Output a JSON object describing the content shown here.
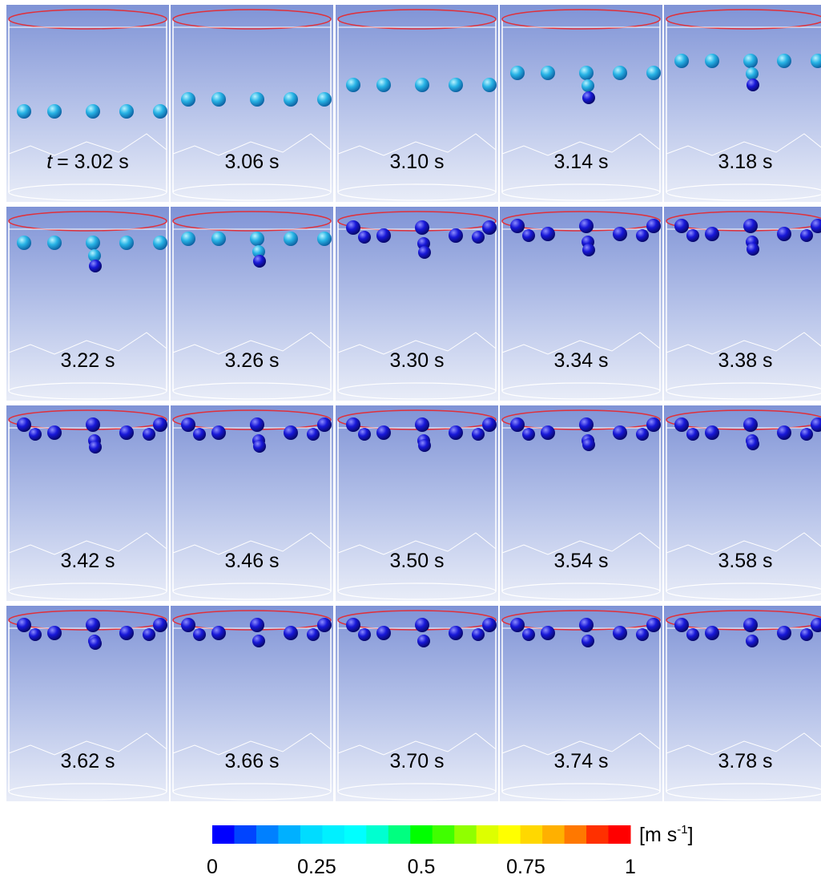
{
  "panels": [
    {
      "label_var": "t",
      "label": "= 3.02 s"
    },
    {
      "label": "3.06 s"
    },
    {
      "label": "3.10 s"
    },
    {
      "label": "3.14 s"
    },
    {
      "label": "3.18 s"
    },
    {
      "label": "3.22 s"
    },
    {
      "label": "3.26 s"
    },
    {
      "label": "3.30 s"
    },
    {
      "label": "3.34 s"
    },
    {
      "label": "3.38 s"
    },
    {
      "label": "3.42 s"
    },
    {
      "label": "3.46 s"
    },
    {
      "label": "3.50 s"
    },
    {
      "label": "3.54 s"
    },
    {
      "label": "3.58 s"
    },
    {
      "label": "3.62 s"
    },
    {
      "label": "3.66 s"
    },
    {
      "label": "3.70 s"
    },
    {
      "label": "3.74 s"
    },
    {
      "label": "3.78 s"
    }
  ],
  "colorbar": {
    "range": [
      0,
      1
    ],
    "ticks": [
      0,
      0.25,
      0.5,
      0.75,
      1
    ],
    "colors": [
      "#0000ff",
      "#0044ff",
      "#0080ff",
      "#00b0ff",
      "#00dcff",
      "#00f0ff",
      "#00ffff",
      "#00ffd0",
      "#00ff80",
      "#00ff00",
      "#40ff00",
      "#90ff00",
      "#ddff00",
      "#ffff00",
      "#ffd800",
      "#ffb000",
      "#ff7800",
      "#ff3000",
      "#ff0000"
    ],
    "unit_base": "[m s",
    "unit_exponent": "-1",
    "unit_close": "]"
  }
}
